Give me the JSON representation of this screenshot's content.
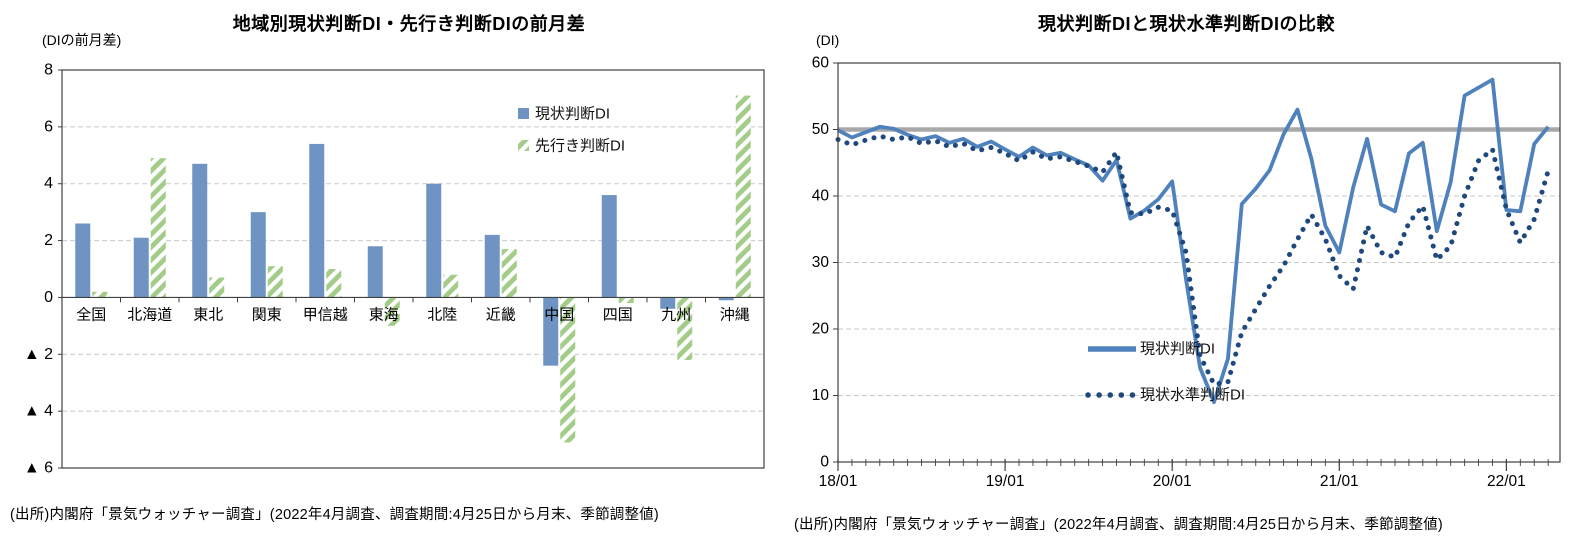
{
  "chart_data": [
    {
      "type": "bar",
      "title": "地域別現状判断DI・先行き判断DIの前月差",
      "unit_label": "(DIの前月差)",
      "source": "(出所)内閣府「景気ウォッチャー調査」(2022年4月調査、調査期間:4月25日から月末、季節調整値)",
      "categories": [
        "全国",
        "北海道",
        "東北",
        "関東",
        "甲信越",
        "東海",
        "北陸",
        "近畿",
        "中国",
        "四国",
        "九州",
        "沖縄"
      ],
      "series": [
        {
          "name": "現状判断DI",
          "color": "#6f94c4",
          "hatch": false,
          "values": [
            2.6,
            2.1,
            4.7,
            3.0,
            5.4,
            1.8,
            4.0,
            2.2,
            -2.4,
            3.6,
            -0.4,
            -0.1
          ]
        },
        {
          "name": "先行き判断DI",
          "color": "#a2cc87",
          "hatch": true,
          "values": [
            0.2,
            4.9,
            0.7,
            1.1,
            1.0,
            -1.0,
            0.8,
            1.7,
            -5.1,
            -0.2,
            -2.2,
            7.1
          ]
        }
      ],
      "ylim": [
        -6,
        8
      ],
      "yticks": [
        {
          "v": 8,
          "label": "8"
        },
        {
          "v": 6,
          "label": "6"
        },
        {
          "v": 4,
          "label": "4"
        },
        {
          "v": 2,
          "label": "2"
        },
        {
          "v": 0,
          "label": "0"
        },
        {
          "v": -2,
          "label": "▲ 2"
        },
        {
          "v": -4,
          "label": "▲ 4"
        },
        {
          "v": -6,
          "label": "▲ 6"
        }
      ],
      "grid": true,
      "legend_position": "upper-right-inside"
    },
    {
      "type": "line",
      "title": "現状判断DIと現状水準判断DIの比較",
      "unit_label": "(DI)",
      "source": "(出所)内閣府「景気ウォッチャー調査」(2022年4月調査、調査期間:4月25日から月末、季節調整値)",
      "x": [
        "18/01",
        "18/02",
        "18/03",
        "18/04",
        "18/05",
        "18/06",
        "18/07",
        "18/08",
        "18/09",
        "18/10",
        "18/11",
        "18/12",
        "19/01",
        "19/02",
        "19/03",
        "19/04",
        "19/05",
        "19/06",
        "19/07",
        "19/08",
        "19/09",
        "19/10",
        "19/11",
        "19/12",
        "20/01",
        "20/02",
        "20/03",
        "20/04",
        "20/05",
        "20/06",
        "20/07",
        "20/08",
        "20/09",
        "20/10",
        "20/11",
        "20/12",
        "21/01",
        "21/02",
        "21/03",
        "21/04",
        "21/05",
        "21/06",
        "21/07",
        "21/08",
        "21/09",
        "21/10",
        "21/11",
        "21/12",
        "22/01",
        "22/02",
        "22/03",
        "22/04"
      ],
      "series": [
        {
          "name": "現状判断DI",
          "style": "solid",
          "color": "#4f81bd",
          "values": [
            49.9,
            48.8,
            49.6,
            50.4,
            50.1,
            49.2,
            48.5,
            49.0,
            48.0,
            48.6,
            47.4,
            48.2,
            47.0,
            45.9,
            47.3,
            46.1,
            46.5,
            45.5,
            44.6,
            42.3,
            45.4,
            36.6,
            37.8,
            39.5,
            42.2,
            27.4,
            14.2,
            9.0,
            15.5,
            38.8,
            41.1,
            43.9,
            49.3,
            53.0,
            45.6,
            35.5,
            31.5,
            41.3,
            48.6,
            38.7,
            37.7,
            46.4,
            48.0,
            34.7,
            42.1,
            55.1,
            56.3,
            57.5,
            37.9,
            37.7,
            47.8,
            50.4
          ]
        },
        {
          "name": "現状水準判断DI",
          "style": "dotted",
          "color": "#1f497d",
          "values": [
            48.5,
            47.7,
            48.4,
            49.0,
            48.5,
            48.9,
            47.9,
            48.3,
            47.4,
            47.9,
            46.8,
            47.3,
            46.4,
            45.3,
            46.6,
            45.6,
            45.9,
            45.2,
            44.5,
            43.6,
            46.6,
            37.5,
            37.3,
            38.3,
            37.8,
            31.5,
            16.0,
            11.7,
            12.0,
            19.5,
            23.0,
            26.5,
            29.5,
            33.5,
            37.2,
            33.5,
            28.0,
            26.0,
            35.5,
            31.5,
            30.8,
            36.0,
            38.5,
            30.4,
            32.5,
            40.0,
            45.3,
            47.0,
            38.0,
            33.0,
            36.5,
            43.8
          ]
        }
      ],
      "ylim": [
        0,
        60
      ],
      "yticks": [
        {
          "v": 0,
          "label": "0"
        },
        {
          "v": 10,
          "label": "10"
        },
        {
          "v": 20,
          "label": "20"
        },
        {
          "v": 30,
          "label": "30"
        },
        {
          "v": 40,
          "label": "40"
        },
        {
          "v": 50,
          "label": "50"
        },
        {
          "v": 60,
          "label": "60"
        }
      ],
      "x_major_ticks": [
        {
          "index": 0,
          "label": "18/01"
        },
        {
          "index": 12,
          "label": "19/01"
        },
        {
          "index": 24,
          "label": "20/01"
        },
        {
          "index": 36,
          "label": "21/01"
        },
        {
          "index": 48,
          "label": "22/01"
        }
      ],
      "reference_line": {
        "y": 50,
        "color": "#a8a8a8"
      },
      "grid": true,
      "legend_position": "center-right-inside"
    }
  ]
}
